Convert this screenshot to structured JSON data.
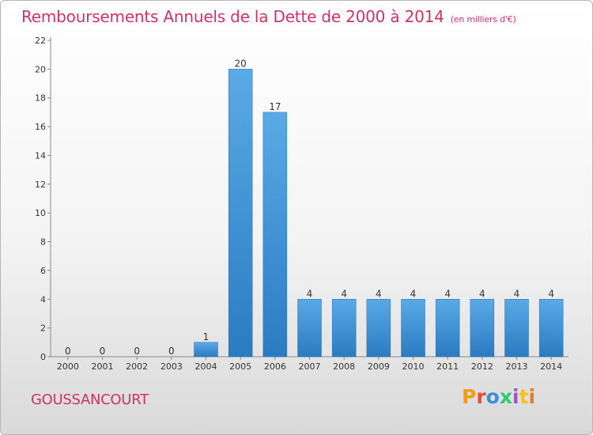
{
  "chart_data": {
    "type": "bar",
    "title": "Remboursements Annuels de la Dette de 2000 à 2014",
    "subtitle": "(en milliers d'€)",
    "categories": [
      "2000",
      "2001",
      "2002",
      "2003",
      "2004",
      "2005",
      "2006",
      "2007",
      "2008",
      "2009",
      "2010",
      "2011",
      "2012",
      "2013",
      "2014"
    ],
    "values": [
      0,
      0,
      0,
      0,
      1,
      20,
      17,
      4,
      4,
      4,
      4,
      4,
      4,
      4,
      4
    ],
    "ylim": [
      0,
      22
    ],
    "yticks": [
      0,
      2,
      4,
      6,
      8,
      10,
      12,
      14,
      16,
      18,
      20,
      22
    ],
    "xlabel": "",
    "ylabel": "",
    "grid": false,
    "bar_color": "#3a8fd6"
  },
  "footer": {
    "commune": "GOUSSANCOURT",
    "logo_text": "Proxiti"
  },
  "colors": {
    "title": "#cc3366",
    "logo": [
      "#f39c12",
      "#e74c3c",
      "#3a8fd6",
      "#2ecc71",
      "#9b59b6",
      "#f1c40f",
      "#e67e22"
    ]
  }
}
